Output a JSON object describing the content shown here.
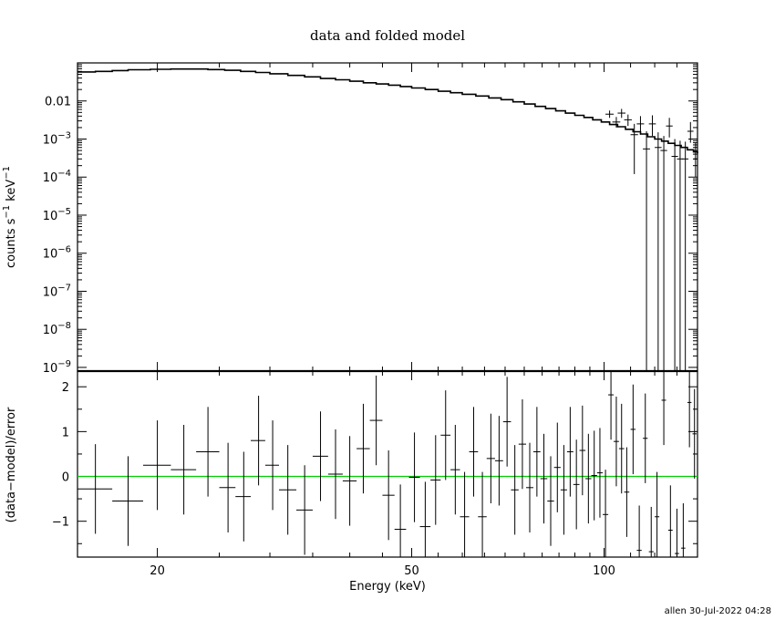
{
  "title": "data and folded model",
  "footer": "allen 30-Jul-2022 04:28",
  "colors": {
    "axes": "#000000",
    "zero_line": "#00cc00"
  },
  "chart_data": [
    {
      "type": "scatter",
      "panel": "top",
      "title": "data and folded model",
      "ylabel_html": "counts s<tspan dy='-6' font-size='10'>−1</tspan><tspan dy='6'> keV</tspan><tspan dy='-6' font-size='10'>−1</tspan>",
      "ylabel": "counts s−1 keV−1",
      "xscale": "log",
      "yscale": "log",
      "xlim": [
        15,
        140
      ],
      "ylim": [
        8e-10,
        0.1
      ],
      "yticks": [
        {
          "v": 0.01,
          "label": "0.01"
        },
        {
          "v": 0.001,
          "base": "10",
          "exp": "−3"
        },
        {
          "v": 0.0001,
          "base": "10",
          "exp": "−4"
        },
        {
          "v": 1e-05,
          "base": "10",
          "exp": "−5"
        },
        {
          "v": 1e-06,
          "base": "10",
          "exp": "−6"
        },
        {
          "v": 1e-07,
          "base": "10",
          "exp": "−7"
        },
        {
          "v": 1e-08,
          "base": "10",
          "exp": "−8"
        },
        {
          "v": 1e-09,
          "base": "10",
          "exp": "−9"
        }
      ],
      "model_step": [
        [
          15.0,
          0.058
        ],
        [
          16.0,
          0.06
        ],
        [
          17.0,
          0.063
        ],
        [
          18.0,
          0.066
        ],
        [
          19.5,
          0.068
        ],
        [
          21.0,
          0.069
        ],
        [
          22.5,
          0.069
        ],
        [
          24.0,
          0.067
        ],
        [
          25.5,
          0.064
        ],
        [
          27.0,
          0.06
        ],
        [
          28.5,
          0.056
        ],
        [
          30.0,
          0.052
        ],
        [
          32.0,
          0.047
        ],
        [
          34.0,
          0.043
        ],
        [
          36.0,
          0.039
        ],
        [
          38.0,
          0.036
        ],
        [
          40.0,
          0.033
        ],
        [
          42.0,
          0.03
        ],
        [
          44.0,
          0.028
        ],
        [
          46.0,
          0.026
        ],
        [
          48.0,
          0.024
        ],
        [
          50.0,
          0.022
        ],
        [
          52.5,
          0.02
        ],
        [
          55.0,
          0.018
        ],
        [
          57.5,
          0.0165
        ],
        [
          60.0,
          0.015
        ],
        [
          63.0,
          0.0135
        ],
        [
          66.0,
          0.012
        ],
        [
          69.0,
          0.0108
        ],
        [
          72.0,
          0.0095
        ],
        [
          75.0,
          0.0083
        ],
        [
          78.0,
          0.0072
        ],
        [
          81.0,
          0.0063
        ],
        [
          84.0,
          0.0055
        ],
        [
          87.0,
          0.0048
        ],
        [
          90.0,
          0.0042
        ],
        [
          93.0,
          0.0037
        ],
        [
          96.0,
          0.0032
        ],
        [
          99.0,
          0.0028
        ],
        [
          102.0,
          0.0024
        ],
        [
          105.0,
          0.0021
        ],
        [
          108.0,
          0.0018
        ],
        [
          111.0,
          0.00155
        ],
        [
          114.0,
          0.00135
        ],
        [
          117.0,
          0.00115
        ],
        [
          120.0,
          0.001
        ],
        [
          123.0,
          0.00088
        ],
        [
          126.0,
          0.00077
        ],
        [
          129.0,
          0.00068
        ],
        [
          132.0,
          0.0006
        ],
        [
          135.0,
          0.00052
        ],
        [
          138.0,
          0.00046
        ],
        [
          140.0,
          0.00042
        ]
      ],
      "points": [
        {
          "x": 102.0,
          "xerr": 1.5,
          "y": 0.0045,
          "ylo": 0.0036,
          "yhi": 0.0056
        },
        {
          "x": 104.5,
          "xerr": 1.5,
          "y": 0.0028,
          "ylo": 0.002,
          "yhi": 0.0038
        },
        {
          "x": 106.5,
          "xerr": 1.5,
          "y": 0.0048,
          "ylo": 0.0036,
          "yhi": 0.0062
        },
        {
          "x": 109.0,
          "xerr": 1.5,
          "y": 0.0032,
          "ylo": 0.0022,
          "yhi": 0.0044
        },
        {
          "x": 111.5,
          "xerr": 1.5,
          "y": 0.0013,
          "ylo": 0.00012,
          "yhi": 0.0025
        },
        {
          "x": 114.0,
          "xerr": 1.5,
          "y": 0.0025,
          "ylo": 0.0013,
          "yhi": 0.004
        },
        {
          "x": 116.5,
          "xerr": 1.5,
          "y": 0.00055,
          "ylo": 8e-10,
          "yhi": 0.0016
        },
        {
          "x": 119.0,
          "xerr": 1.5,
          "y": 0.0025,
          "ylo": 0.0012,
          "yhi": 0.0042
        },
        {
          "x": 121.5,
          "xerr": 1.5,
          "y": 0.0006,
          "ylo": 8e-10,
          "yhi": 0.0015
        },
        {
          "x": 124.0,
          "xerr": 1.5,
          "y": 0.0005,
          "ylo": 8e-10,
          "yhi": 0.0012
        },
        {
          "x": 126.5,
          "xerr": 1.5,
          "y": 0.0022,
          "ylo": 0.0011,
          "yhi": 0.0036
        },
        {
          "x": 129.0,
          "xerr": 1.5,
          "y": 0.00035,
          "ylo": 8e-10,
          "yhi": 0.001
        },
        {
          "x": 131.5,
          "xerr": 1.5,
          "y": 0.0003,
          "ylo": 8e-10,
          "yhi": 0.0009
        },
        {
          "x": 134.0,
          "xerr": 1.5,
          "y": 0.0003,
          "ylo": 8e-10,
          "yhi": 0.00085
        },
        {
          "x": 136.5,
          "xerr": 1.5,
          "y": 0.0016,
          "ylo": 0.0008,
          "yhi": 0.0028
        },
        {
          "x": 139.0,
          "xerr": 1.0,
          "y": 0.0003,
          "ylo": 0.0001,
          "yhi": 0.0008
        }
      ]
    },
    {
      "type": "scatter",
      "panel": "bottom",
      "ylabel": "(data−model)/error",
      "xlabel": "Energy (keV)",
      "xscale": "log",
      "xlim": [
        15,
        140
      ],
      "ylim": [
        -1.8,
        2.35
      ],
      "yticks": [
        {
          "v": 2,
          "label": "2"
        },
        {
          "v": 1,
          "label": "1"
        },
        {
          "v": 0,
          "label": "0"
        },
        {
          "v": -1,
          "label": "−1"
        }
      ],
      "xticks": [
        {
          "v": 20,
          "label": "20"
        },
        {
          "v": 50,
          "label": "50"
        },
        {
          "v": 100,
          "label": "100"
        }
      ],
      "zero_line": 0,
      "points": [
        {
          "x": 16.0,
          "xlo": 15.0,
          "xhi": 17.0,
          "y": -0.28,
          "yerr": 1.0
        },
        {
          "x": 18.0,
          "xlo": 17.0,
          "xhi": 19.0,
          "y": -0.55,
          "yerr": 1.0
        },
        {
          "x": 20.0,
          "xlo": 19.0,
          "xhi": 21.0,
          "y": 0.25,
          "yerr": 1.0
        },
        {
          "x": 22.0,
          "xlo": 21.0,
          "xhi": 23.0,
          "y": 0.15,
          "yerr": 1.0
        },
        {
          "x": 24.0,
          "xlo": 23.0,
          "xhi": 25.0,
          "y": 0.55,
          "yerr": 1.0
        },
        {
          "x": 25.8,
          "xlo": 25.0,
          "xhi": 26.5,
          "y": -0.25,
          "yerr": 1.0
        },
        {
          "x": 27.3,
          "xlo": 26.5,
          "xhi": 28.0,
          "y": -0.45,
          "yerr": 1.0
        },
        {
          "x": 28.8,
          "xlo": 28.0,
          "xhi": 29.5,
          "y": 0.8,
          "yerr": 1.0
        },
        {
          "x": 30.3,
          "xlo": 29.5,
          "xhi": 31.0,
          "y": 0.25,
          "yerr": 1.0
        },
        {
          "x": 32.0,
          "xlo": 31.0,
          "xhi": 33.0,
          "y": -0.3,
          "yerr": 1.0
        },
        {
          "x": 34.0,
          "xlo": 33.0,
          "xhi": 35.0,
          "y": -0.75,
          "yerr": 1.0
        },
        {
          "x": 36.0,
          "xlo": 35.0,
          "xhi": 37.0,
          "y": 0.45,
          "yerr": 1.0
        },
        {
          "x": 38.0,
          "xlo": 37.0,
          "xhi": 39.0,
          "y": 0.05,
          "yerr": 1.0
        },
        {
          "x": 40.0,
          "xlo": 39.0,
          "xhi": 41.0,
          "y": -0.1,
          "yerr": 1.0
        },
        {
          "x": 42.0,
          "xlo": 41.0,
          "xhi": 43.0,
          "y": 0.62,
          "yerr": 1.0
        },
        {
          "x": 44.0,
          "xlo": 43.0,
          "xhi": 45.0,
          "y": 1.25,
          "yerr": 1.0
        },
        {
          "x": 46.0,
          "xlo": 45.0,
          "xhi": 47.0,
          "y": -0.42,
          "yerr": 1.0
        },
        {
          "x": 48.0,
          "xlo": 47.0,
          "xhi": 49.0,
          "y": -1.18,
          "yerr": 1.0
        },
        {
          "x": 50.5,
          "xlo": 49.5,
          "xhi": 51.5,
          "y": -0.02,
          "yerr": 1.0
        },
        {
          "x": 52.5,
          "xlo": 51.5,
          "xhi": 53.5,
          "y": -1.12,
          "yerr": 1.0
        },
        {
          "x": 54.5,
          "xlo": 53.5,
          "xhi": 55.5,
          "y": -0.08,
          "yerr": 1.0
        },
        {
          "x": 56.5,
          "xlo": 55.5,
          "xhi": 57.5,
          "y": 0.92,
          "yerr": 1.0
        },
        {
          "x": 58.5,
          "xlo": 57.5,
          "xhi": 59.5,
          "y": 0.15,
          "yerr": 1.0
        },
        {
          "x": 60.5,
          "xlo": 59.5,
          "xhi": 61.5,
          "y": -0.9,
          "yerr": 1.0
        },
        {
          "x": 62.5,
          "xlo": 61.5,
          "xhi": 63.5,
          "y": 0.55,
          "yerr": 1.0
        },
        {
          "x": 64.5,
          "xlo": 63.5,
          "xhi": 65.5,
          "y": -0.9,
          "yerr": 1.0
        },
        {
          "x": 66.5,
          "xlo": 65.5,
          "xhi": 67.5,
          "y": 0.4,
          "yerr": 1.0
        },
        {
          "x": 68.5,
          "xlo": 67.5,
          "xhi": 69.5,
          "y": 0.35,
          "yerr": 1.0
        },
        {
          "x": 70.5,
          "xlo": 69.5,
          "xhi": 71.5,
          "y": 1.22,
          "yerr": 1.0
        },
        {
          "x": 72.5,
          "xlo": 71.5,
          "xhi": 73.5,
          "y": -0.3,
          "yerr": 1.0
        },
        {
          "x": 74.5,
          "xlo": 73.5,
          "xhi": 75.5,
          "y": 0.72,
          "yerr": 1.0
        },
        {
          "x": 76.5,
          "xlo": 75.5,
          "xhi": 77.5,
          "y": -0.25,
          "yerr": 1.0
        },
        {
          "x": 78.5,
          "xlo": 77.5,
          "xhi": 79.5,
          "y": 0.55,
          "yerr": 1.0
        },
        {
          "x": 80.5,
          "xlo": 79.5,
          "xhi": 81.5,
          "y": -0.05,
          "yerr": 1.0
        },
        {
          "x": 82.5,
          "xlo": 81.5,
          "xhi": 83.5,
          "y": -0.55,
          "yerr": 1.0
        },
        {
          "x": 84.5,
          "xlo": 83.5,
          "xhi": 85.5,
          "y": 0.2,
          "yerr": 1.0
        },
        {
          "x": 86.5,
          "xlo": 85.5,
          "xhi": 87.5,
          "y": -0.3,
          "yerr": 1.0
        },
        {
          "x": 88.5,
          "xlo": 87.5,
          "xhi": 89.5,
          "y": 0.55,
          "yerr": 1.0
        },
        {
          "x": 90.5,
          "xlo": 89.5,
          "xhi": 91.5,
          "y": -0.18,
          "yerr": 1.0
        },
        {
          "x": 92.5,
          "xlo": 91.5,
          "xhi": 93.5,
          "y": 0.58,
          "yerr": 1.0
        },
        {
          "x": 94.5,
          "xlo": 93.5,
          "xhi": 95.5,
          "y": -0.05,
          "yerr": 1.0
        },
        {
          "x": 96.5,
          "xlo": 95.5,
          "xhi": 97.5,
          "y": 0.02,
          "yerr": 1.0
        },
        {
          "x": 98.5,
          "xlo": 97.5,
          "xhi": 99.5,
          "y": 0.08,
          "yerr": 1.0
        },
        {
          "x": 100.5,
          "xlo": 99.5,
          "xhi": 101.5,
          "y": -0.85,
          "yerr": 1.0
        },
        {
          "x": 102.5,
          "xlo": 101.5,
          "xhi": 103.5,
          "y": 1.82,
          "yerr": 1.0
        },
        {
          "x": 104.5,
          "xlo": 103.5,
          "xhi": 105.5,
          "y": 0.78,
          "yerr": 1.0
        },
        {
          "x": 106.5,
          "xlo": 105.5,
          "xhi": 107.5,
          "y": 0.62,
          "yerr": 1.0
        },
        {
          "x": 108.5,
          "xlo": 107.5,
          "xhi": 109.5,
          "y": -0.35,
          "yerr": 1.0
        },
        {
          "x": 111.0,
          "xlo": 110.0,
          "xhi": 112.0,
          "y": 1.05,
          "yerr": 1.0
        },
        {
          "x": 113.5,
          "xlo": 112.5,
          "xhi": 114.5,
          "y": -1.65,
          "yerr": 1.0
        },
        {
          "x": 116.0,
          "xlo": 115.0,
          "xhi": 117.0,
          "y": 0.85,
          "yerr": 1.0
        },
        {
          "x": 118.5,
          "xlo": 117.5,
          "xhi": 119.5,
          "y": -1.68,
          "yerr": 1.0
        },
        {
          "x": 121.0,
          "xlo": 120.0,
          "xhi": 122.0,
          "y": -0.9,
          "yerr": 1.0
        },
        {
          "x": 124.0,
          "xlo": 123.0,
          "xhi": 125.0,
          "y": 1.7,
          "yerr": 1.0
        },
        {
          "x": 127.0,
          "xlo": 126.0,
          "xhi": 128.0,
          "y": -1.2,
          "yerr": 1.0
        },
        {
          "x": 130.0,
          "xlo": 129.0,
          "xhi": 131.0,
          "y": -1.72,
          "yerr": 1.0
        },
        {
          "x": 133.0,
          "xlo": 132.0,
          "xhi": 134.0,
          "y": -1.6,
          "yerr": 1.0
        },
        {
          "x": 136.0,
          "xlo": 135.0,
          "xhi": 137.0,
          "y": 1.65,
          "yerr": 1.0
        },
        {
          "x": 138.5,
          "xlo": 137.5,
          "xhi": 139.5,
          "y": 0.95,
          "yerr": 1.0
        }
      ]
    }
  ]
}
